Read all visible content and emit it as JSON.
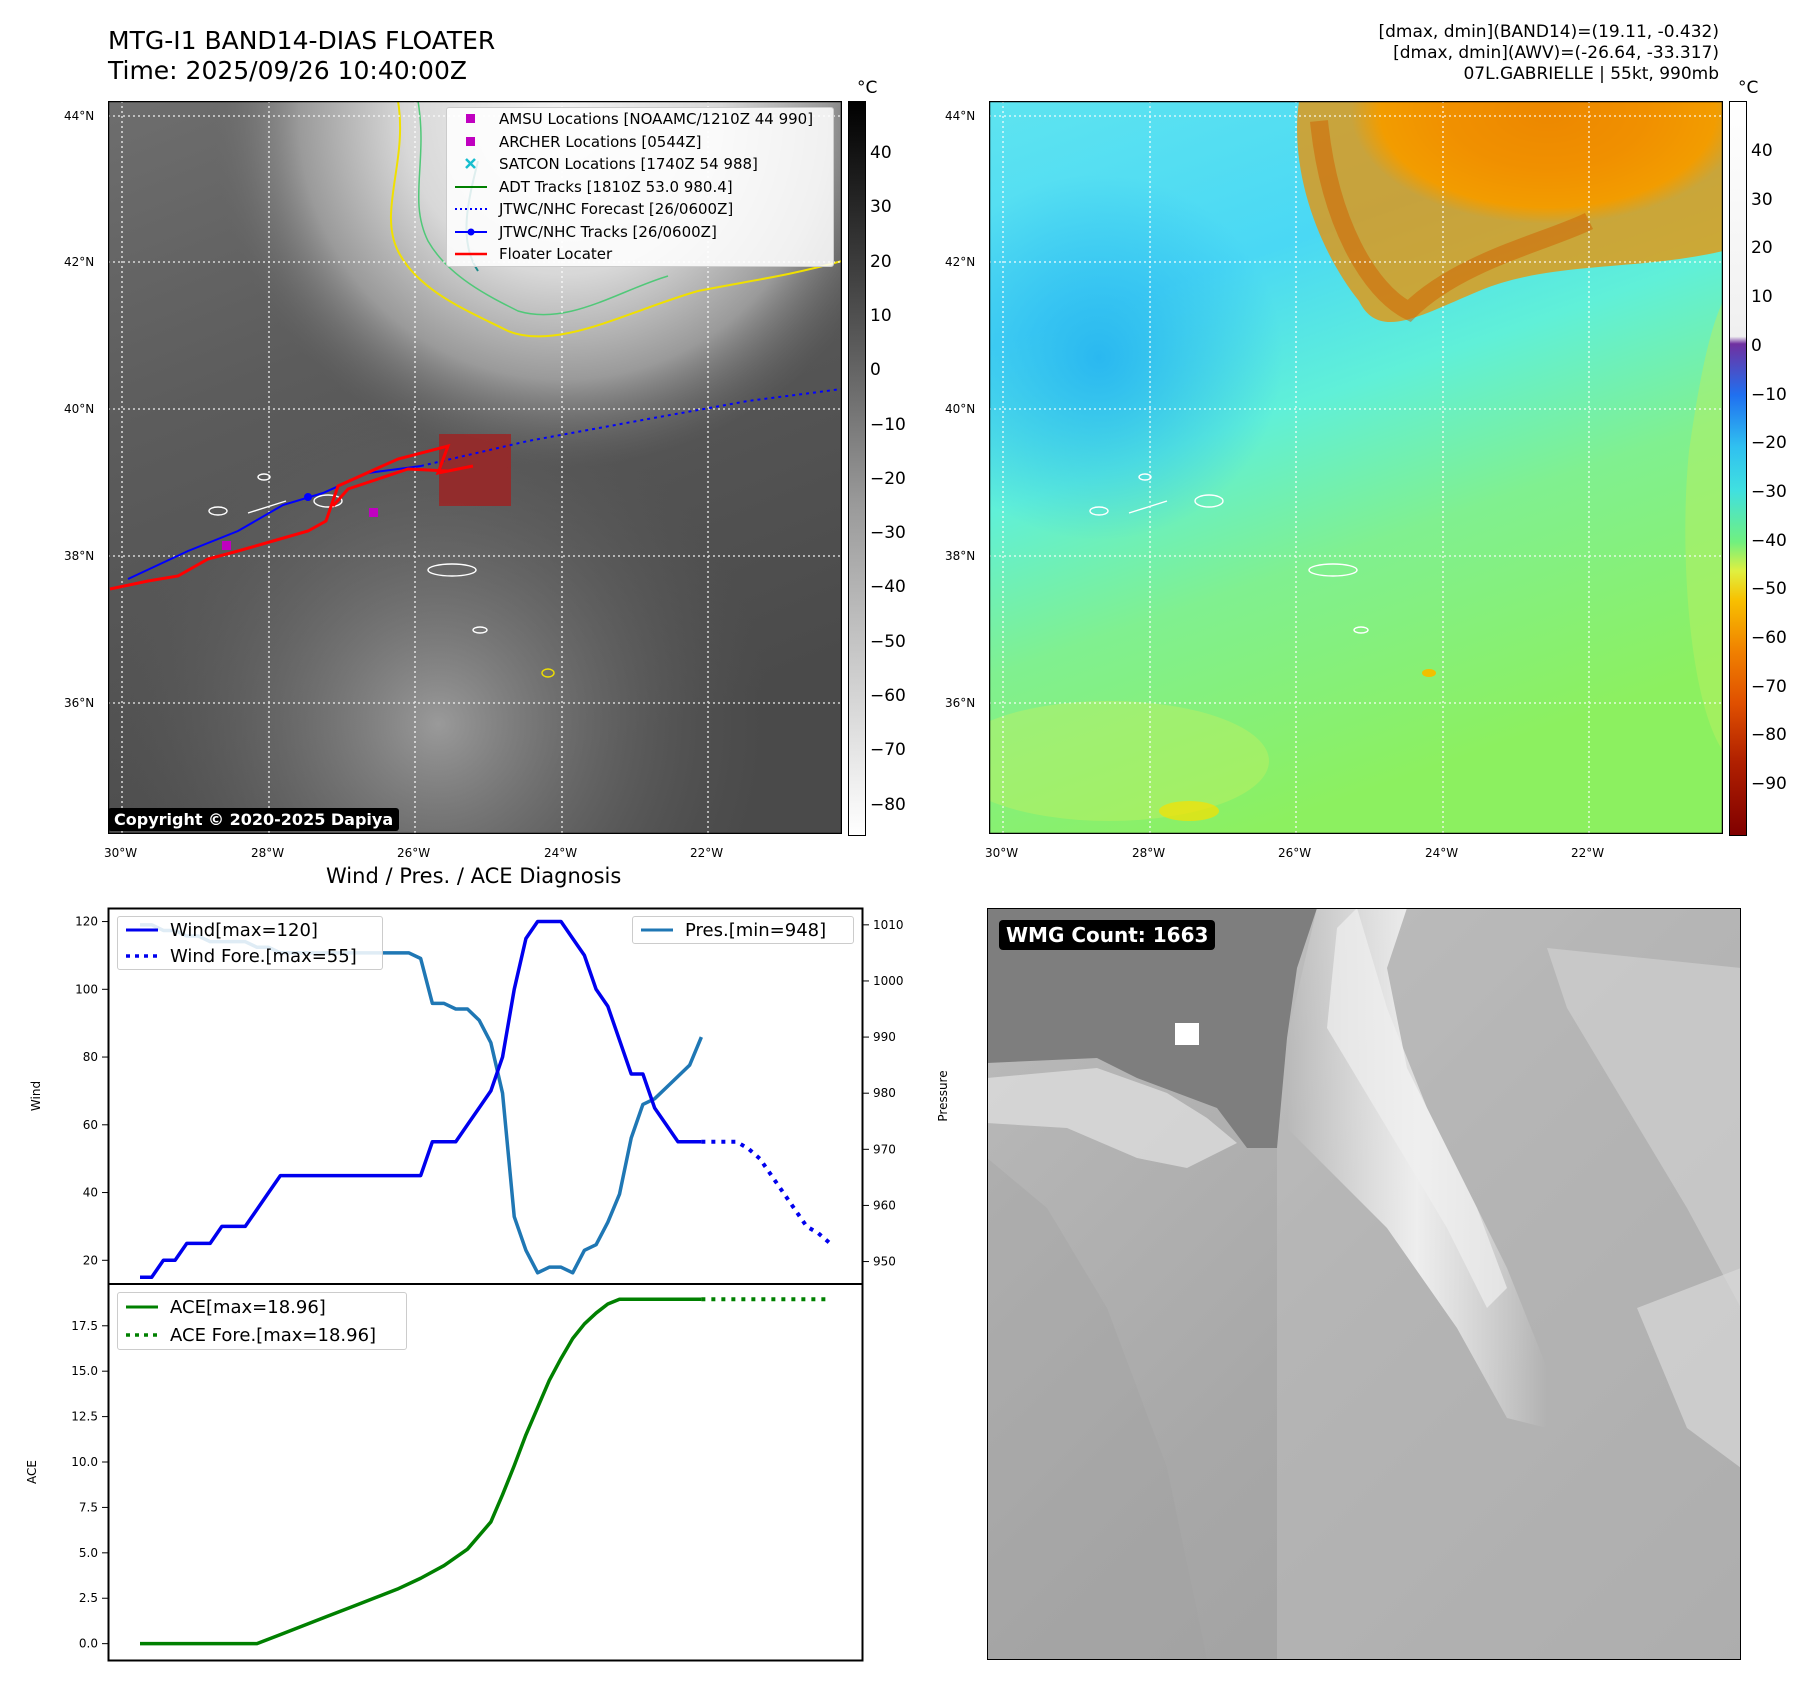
{
  "header": {
    "title_line1": "MTG-I1 BAND14-DIAS FLOATER",
    "title_line2": "Time: 2025/09/26 10:40:00Z",
    "info_line1": "[dmax, dmin](BAND14)=(19.11, -0.432)",
    "info_line2": "[dmax, dmin](AWV)=(-26.64, -33.317)",
    "info_line3": "07L.GABRIELLE | 55kt, 990mb"
  },
  "map": {
    "lat_labels": [
      "44°N",
      "42°N",
      "40°N",
      "38°N",
      "36°N"
    ],
    "lon_labels": [
      "30°W",
      "28°W",
      "26°W",
      "24°W",
      "22°W"
    ],
    "copyright": "Copyright © 2020-2025 Dapiya",
    "legend": [
      {
        "label": "AMSU Locations [NOAAMC/1210Z 44 990]",
        "color": "#c000c0",
        "symbol": "square"
      },
      {
        "label": "ARCHER Locations [0544Z]",
        "color": "#c000c0",
        "symbol": "square"
      },
      {
        "label": "SATCON Locations [1740Z 54 988]",
        "color": "#17becf",
        "symbol": "x"
      },
      {
        "label": "ADT Tracks [1810Z 53.0 980.4]",
        "color": "#008000",
        "symbol": "line"
      },
      {
        "label": "JTWC/NHC Forecast [26/0600Z]",
        "color": "#0000ff",
        "symbol": "dotted"
      },
      {
        "label": "JTWC/NHC Tracks [26/0600Z]",
        "color": "#0000ff",
        "symbol": "line-dot"
      },
      {
        "label": "Floater Locater",
        "color": "#ff0000",
        "symbol": "line"
      }
    ]
  },
  "colorbars": {
    "unit": "°C",
    "gray_ticks": [
      "40",
      "30",
      "20",
      "10",
      "0",
      "−10",
      "−20",
      "−30",
      "−40",
      "−50",
      "−60",
      "−70",
      "−80"
    ],
    "color_ticks": [
      "40",
      "30",
      "20",
      "10",
      "0",
      "−10",
      "−20",
      "−30",
      "−40",
      "−50",
      "−60",
      "−70",
      "−80",
      "−90"
    ]
  },
  "wmg": {
    "label": "WMG Count: 1663"
  },
  "chart_data": [
    {
      "type": "line",
      "title": "Wind / Pres. / ACE Diagnosis",
      "ylabel": "Wind",
      "ylabel_right": "Pressure",
      "ylim": [
        13,
        124
      ],
      "ylim_right": [
        946,
        1013
      ],
      "y_ticks": [
        "120",
        "100",
        "80",
        "60",
        "40",
        "20"
      ],
      "y_ticks_right": [
        "1010",
        "1000",
        "990",
        "980",
        "970",
        "960",
        "950"
      ],
      "x_index": [
        0,
        1,
        2,
        3,
        4,
        5,
        6,
        7,
        8,
        9,
        10,
        11,
        12,
        13,
        14,
        15,
        16,
        17,
        18,
        19,
        20,
        21,
        22,
        23,
        24,
        25,
        26,
        27,
        28,
        29,
        30,
        31,
        32,
        33,
        34,
        35,
        36,
        37,
        38,
        39,
        40,
        41,
        42,
        43,
        44,
        45,
        46,
        47,
        48,
        49,
        50,
        51,
        52,
        53,
        54,
        55,
        56,
        57,
        58,
        59
      ],
      "series": [
        {
          "name": "Wind[max=120]",
          "color": "#0000ee",
          "style": "solid",
          "x": [
            0,
            1,
            2,
            3,
            4,
            5,
            6,
            7,
            8,
            9,
            10,
            11,
            12,
            13,
            14,
            15,
            16,
            17,
            18,
            19,
            20,
            21,
            22,
            23,
            24,
            25,
            26,
            27,
            28,
            29,
            30,
            31,
            32,
            33,
            34,
            35,
            36,
            37,
            38,
            39,
            40,
            41,
            42,
            43,
            44,
            45,
            46,
            47,
            48
          ],
          "values": [
            15,
            15,
            20,
            20,
            25,
            25,
            25,
            30,
            30,
            30,
            35,
            40,
            45,
            45,
            45,
            45,
            45,
            45,
            45,
            45,
            45,
            45,
            45,
            45,
            45,
            55,
            55,
            55,
            60,
            65,
            70,
            80,
            100,
            115,
            120,
            120,
            120,
            115,
            110,
            100,
            95,
            85,
            75,
            75,
            65,
            60,
            55,
            55,
            55
          ]
        },
        {
          "name": "Wind Fore.[max=55]",
          "color": "#0000ee",
          "style": "dotted",
          "x": [
            48,
            49,
            50,
            51,
            52,
            53,
            54,
            55,
            56,
            57,
            58,
            59
          ],
          "values": [
            55,
            55,
            55,
            55,
            53,
            50,
            45,
            40,
            35,
            30,
            28,
            25
          ]
        },
        {
          "name": "Pres.[min=948]",
          "color": "#1f77b4",
          "style": "solid",
          "axis": "right",
          "x": [
            0,
            1,
            2,
            3,
            4,
            5,
            6,
            7,
            8,
            9,
            10,
            11,
            12,
            13,
            14,
            15,
            16,
            17,
            18,
            19,
            20,
            21,
            22,
            23,
            24,
            25,
            26,
            27,
            28,
            29,
            30,
            31,
            32,
            33,
            34,
            35,
            36,
            37,
            38,
            39,
            40,
            41,
            42,
            43,
            44,
            45,
            46,
            47,
            48
          ],
          "values": [
            1010,
            1010,
            1009,
            1009,
            1008,
            1008,
            1007,
            1007,
            1007,
            1007,
            1006,
            1006,
            1005,
            1005,
            1005,
            1005,
            1005,
            1005,
            1005,
            1005,
            1005,
            1005,
            1005,
            1005,
            1004,
            996,
            996,
            995,
            995,
            993,
            989,
            980,
            958,
            952,
            948,
            949,
            949,
            948,
            952,
            953,
            957,
            962,
            972,
            978,
            979,
            981,
            983,
            985,
            990
          ]
        }
      ]
    },
    {
      "type": "line",
      "ylabel": "ACE",
      "ylim": [
        -0.9,
        19.8
      ],
      "y_ticks": [
        "17.5",
        "15.0",
        "12.5",
        "10.0",
        "7.5",
        "5.0",
        "2.5",
        "0.0"
      ],
      "series": [
        {
          "name": "ACE[max=18.96]",
          "color": "#008000",
          "style": "solid",
          "x": [
            0,
            2,
            4,
            6,
            8,
            10,
            12,
            14,
            16,
            18,
            20,
            22,
            24,
            26,
            28,
            30,
            31,
            32,
            33,
            34,
            35,
            36,
            37,
            38,
            39,
            40,
            41,
            42,
            43,
            44,
            45,
            46,
            47,
            48
          ],
          "values": [
            0,
            0,
            0,
            0,
            0,
            0,
            0.5,
            1.0,
            1.5,
            2.0,
            2.5,
            3.0,
            3.6,
            4.3,
            5.2,
            6.7,
            8.2,
            9.8,
            11.5,
            13.0,
            14.5,
            15.7,
            16.8,
            17.6,
            18.2,
            18.7,
            18.96,
            18.96,
            18.96,
            18.96,
            18.96,
            18.96,
            18.96,
            18.96
          ]
        },
        {
          "name": "ACE Fore.[max=18.96]",
          "color": "#008000",
          "style": "dotted",
          "x": [
            48,
            59
          ],
          "values": [
            18.96,
            18.96
          ]
        }
      ]
    }
  ]
}
